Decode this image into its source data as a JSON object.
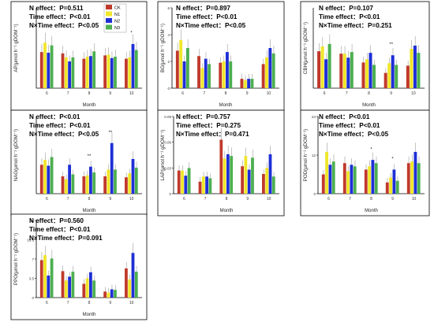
{
  "chart_data": [
    {
      "type": "bar",
      "ylabel": "AP(μmol h⁻¹ gDOM⁻¹)",
      "xlabel": "Month",
      "categories": [
        "6",
        "7",
        "8",
        "9",
        "10"
      ],
      "ylim": [
        0,
        12
      ],
      "yticks": [],
      "stats": [
        "N effect：P=0.511",
        "Time effect：P<0.01",
        "N×Time effect：P<0.05"
      ],
      "annotations": [
        {
          "category": "10",
          "text": "*"
        }
      ],
      "legend": {
        "position": "top-right",
        "entries": [
          "CK",
          "N1",
          "N2",
          "N3"
        ]
      },
      "series": [
        {
          "name": "CK",
          "values": [
            5.4,
            5.2,
            4.4,
            4.9,
            4.4
          ]
        },
        {
          "name": "N1",
          "values": [
            6.8,
            4.6,
            4.7,
            5.0,
            4.6
          ]
        },
        {
          "name": "N2",
          "values": [
            5.3,
            4.0,
            4.8,
            4.5,
            6.6
          ]
        },
        {
          "name": "N3",
          "values": [
            6.4,
            4.6,
            5.5,
            4.7,
            5.7
          ]
        }
      ]
    },
    {
      "type": "bar",
      "ylabel": "BG(μmol h⁻¹ gDOM⁻¹)",
      "xlabel": "Month",
      "categories": [
        "6",
        "7",
        "8",
        "9",
        "10"
      ],
      "ylim": [
        0,
        6
      ],
      "yticks": [
        0,
        2,
        4,
        6
      ],
      "stats": [
        "N effect：P=0.897",
        "Time effect：P<0.01",
        "N×Time effect：P<0.05"
      ],
      "annotations": [],
      "series": [
        {
          "name": "CK",
          "values": [
            2.8,
            2.4,
            1.9,
            0.7,
            1.8
          ]
        },
        {
          "name": "N1",
          "values": [
            3.6,
            1.5,
            2.0,
            0.6,
            2.3
          ]
        },
        {
          "name": "N2",
          "values": [
            2.0,
            2.2,
            2.7,
            0.7,
            3.0
          ]
        },
        {
          "name": "N3",
          "values": [
            3.0,
            1.8,
            2.0,
            0.7,
            2.6
          ]
        }
      ]
    },
    {
      "type": "bar",
      "ylabel": "CBH(μmol h⁻¹ gDOM⁻¹)",
      "xlabel": "Month",
      "categories": [
        "6",
        "7",
        "8",
        "9",
        "10"
      ],
      "ylim": [
        0,
        1.0
      ],
      "yticks": [],
      "stats": [
        "N effect：P=0.107",
        "Time effect：P<0.01",
        "N×Time effect：P=0.251"
      ],
      "annotations": [
        {
          "category": "9",
          "text": "**"
        }
      ],
      "series": [
        {
          "name": "CK",
          "values": [
            0.46,
            0.43,
            0.32,
            0.19,
            0.28
          ]
        },
        {
          "name": "N1",
          "values": [
            0.52,
            0.43,
            0.36,
            0.31,
            0.49
          ]
        },
        {
          "name": "N2",
          "values": [
            0.36,
            0.38,
            0.44,
            0.41,
            0.53
          ]
        },
        {
          "name": "N3",
          "values": [
            0.55,
            0.45,
            0.29,
            0.29,
            0.44
          ]
        }
      ]
    },
    {
      "type": "bar",
      "ylabel": "NAG(μmol h⁻¹ gDOM⁻¹)",
      "xlabel": "Month",
      "categories": [
        "6",
        "7",
        "8",
        "9",
        "10"
      ],
      "ylim": [
        0,
        1.6
      ],
      "yticks": [],
      "stats": [
        "N effect：P<0.01",
        "Time effect：P<0.01",
        "N×Time effect：P<0.05"
      ],
      "annotations": [
        {
          "category": "8",
          "text": "**"
        },
        {
          "category": "9",
          "text": "**"
        }
      ],
      "series": [
        {
          "name": "CK",
          "values": [
            0.6,
            0.36,
            0.36,
            0.36,
            0.34
          ]
        },
        {
          "name": "N1",
          "values": [
            0.7,
            0.3,
            0.38,
            0.5,
            0.42
          ]
        },
        {
          "name": "N2",
          "values": [
            0.58,
            0.6,
            0.56,
            1.05,
            0.72
          ]
        },
        {
          "name": "N3",
          "values": [
            0.76,
            0.4,
            0.44,
            0.5,
            0.54
          ]
        }
      ]
    },
    {
      "type": "bar",
      "ylabel": "LAP(μmol h⁻¹ gDOM⁻¹)",
      "xlabel": "Month",
      "categories": [
        "6",
        "7",
        "8",
        "9",
        "10"
      ],
      "ylim": [
        0,
        0.09
      ],
      "yticks": [
        0,
        0.03,
        0.06,
        0.09
      ],
      "stats": [
        "N effect：P=0.757",
        "Time effect：P=0.275",
        "N×Time effect：P=0.471"
      ],
      "annotations": [],
      "series": [
        {
          "name": "CK",
          "values": [
            0.027,
            0.014,
            0.063,
            0.032,
            0.023
          ]
        },
        {
          "name": "N1",
          "values": [
            0.027,
            0.02,
            0.041,
            0.044,
            0.03
          ]
        },
        {
          "name": "N2",
          "values": [
            0.021,
            0.02,
            0.046,
            0.028,
            0.046
          ]
        },
        {
          "name": "N3",
          "values": [
            0.03,
            0.018,
            0.044,
            0.042,
            0.02
          ]
        }
      ]
    },
    {
      "type": "bar",
      "ylabel": "POD(μmol h⁻¹ gDOM⁻¹)",
      "xlabel": "Month",
      "categories": [
        "6",
        "7",
        "8",
        "9",
        "10"
      ],
      "ylim": [
        0,
        24
      ],
      "yticks": [
        0,
        12,
        24
      ],
      "stats": [
        "N effect：P<0.01",
        "Time effect：P<0.01",
        "N×Time effect：P<0.05"
      ],
      "annotations": [
        {
          "category": "8",
          "text": "*"
        },
        {
          "category": "9",
          "text": "*"
        }
      ],
      "series": [
        {
          "name": "CK",
          "values": [
            6.0,
            9.5,
            7.5,
            3.5,
            9.5
          ]
        },
        {
          "name": "N1",
          "values": [
            13.0,
            7.0,
            8.5,
            5.0,
            10.0
          ]
        },
        {
          "name": "N2",
          "values": [
            9.0,
            9.0,
            10.5,
            7.5,
            13.0
          ]
        },
        {
          "name": "N3",
          "values": [
            10.0,
            8.5,
            9.5,
            4.0,
            9.5
          ]
        }
      ]
    },
    {
      "type": "bar",
      "ylabel": "PPO(μmol h⁻¹ gDOM⁻¹)",
      "xlabel": "Month",
      "categories": [
        "6",
        "7",
        "8",
        "9",
        "10"
      ],
      "ylim": [
        0,
        14
      ],
      "yticks": [
        0,
        3.5,
        7.0,
        10.5,
        14.0
      ],
      "stats": [
        "N effect：P=0.560",
        "Time effect：P<0.01",
        "N×Time effect：P=0.091"
      ],
      "annotations": [],
      "series": [
        {
          "name": "CK",
          "values": [
            6.8,
            4.8,
            2.5,
            1.1,
            5.3
          ]
        },
        {
          "name": "N1",
          "values": [
            7.7,
            3.1,
            3.5,
            0.9,
            3.3
          ]
        },
        {
          "name": "N2",
          "values": [
            4.0,
            3.8,
            4.6,
            1.5,
            8.1
          ]
        },
        {
          "name": "N3",
          "values": [
            7.1,
            4.7,
            3.1,
            1.4,
            4.7
          ]
        }
      ]
    }
  ],
  "colors": {
    "CK": "#c0392b",
    "N1": "#f0e62a",
    "N2": "#1e2fd6",
    "N3": "#4caf50"
  }
}
